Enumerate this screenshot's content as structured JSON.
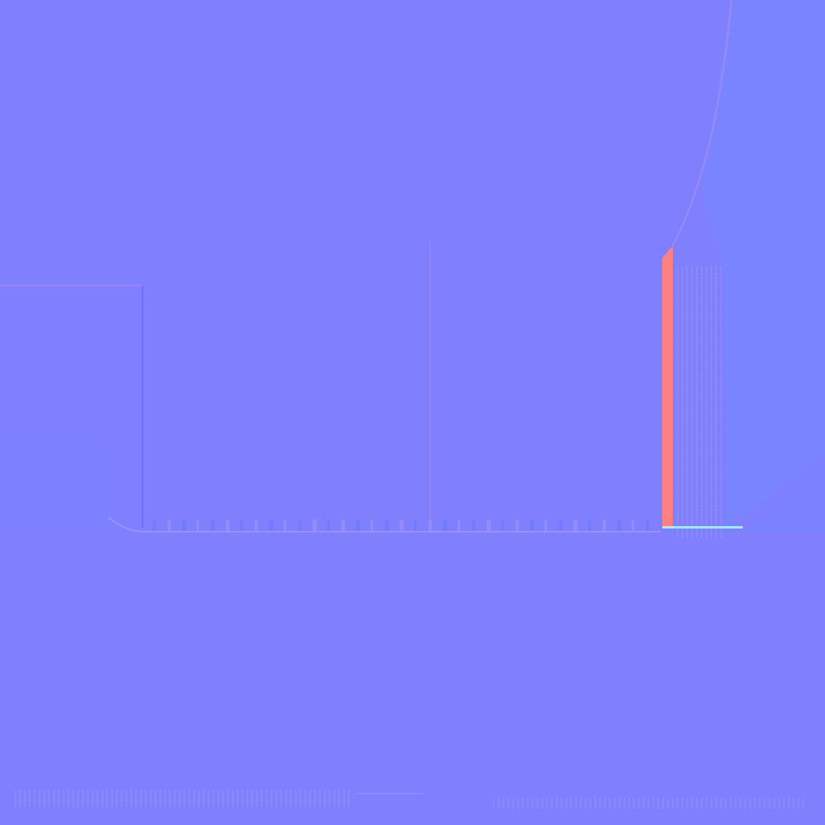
{
  "image": {
    "kind": "normal-map texture",
    "colors": {
      "base": "#8080ff",
      "right_panel": "#7a84ff",
      "left_panel": "#7d80ff",
      "red_edge": "#ff8080",
      "cyan_edge": "#80ffff",
      "pink_line": "#b080ff",
      "blue_line": "#6a70ff",
      "lavender_noise": "#9a90ff"
    }
  }
}
